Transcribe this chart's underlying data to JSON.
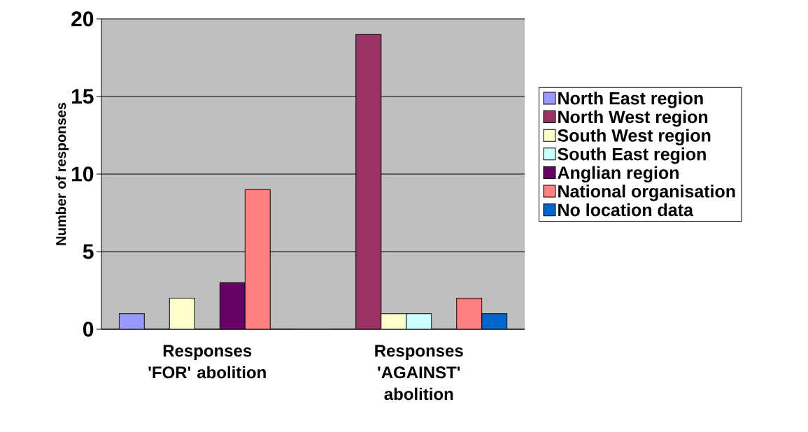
{
  "chart_data": {
    "type": "bar",
    "ylabel": "Number of responses",
    "categories": [
      "Responses 'FOR' abolition",
      "Responses 'AGAINST' abolition"
    ],
    "series": [
      {
        "name": "North East region",
        "color": "#9999ff",
        "values": [
          1,
          0
        ]
      },
      {
        "name": "North West region",
        "color": "#993366",
        "values": [
          0,
          19
        ]
      },
      {
        "name": "South West region",
        "color": "#ffffcc",
        "values": [
          2,
          1
        ]
      },
      {
        "name": "South East region",
        "color": "#ccffff",
        "values": [
          0,
          1
        ]
      },
      {
        "name": "Anglian region",
        "color": "#660066",
        "values": [
          3,
          0
        ]
      },
      {
        "name": "National organisation",
        "color": "#ff8080",
        "values": [
          9,
          2
        ]
      },
      {
        "name": "No location data",
        "color": "#0066cc",
        "values": [
          0,
          1
        ]
      }
    ],
    "ylim": [
      0,
      20
    ],
    "yticks": [
      0,
      5,
      10,
      15,
      20
    ],
    "grid": "y",
    "legend": "right"
  }
}
